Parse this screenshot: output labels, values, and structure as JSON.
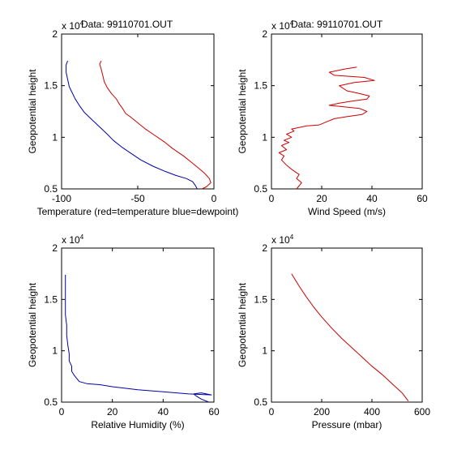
{
  "window": {
    "background": "#ffffff"
  },
  "chart_data": [
    {
      "type": "line",
      "title": "Data: 99110701.OUT",
      "xlabel": "Temperature (red=temperature blue=dewpoint)",
      "ylabel": "Geopotential height",
      "xlim": [
        -100,
        0
      ],
      "ylim": [
        5000,
        20000
      ],
      "xticks": [
        -100,
        -50,
        0
      ],
      "xtick_labels": [
        "-100",
        "-50",
        "0"
      ],
      "yticks": [
        5000,
        10000,
        15000,
        20000
      ],
      "ytick_labels": [
        "0.5",
        "1",
        "1.5",
        "2"
      ],
      "y_exponent": {
        "base": "x 10",
        "power": "4"
      },
      "grid": false,
      "series": [
        {
          "name": "temperature",
          "color": "#cc0000",
          "x": [
            -8,
            -5,
            -2,
            -3,
            -6,
            -10,
            -15,
            -20,
            -27,
            -33,
            -40,
            -45,
            -50,
            -55,
            -58,
            -60,
            -62,
            -64,
            -67,
            -70,
            -72,
            -73,
            -74,
            -75,
            -74
          ],
          "y": [
            5000,
            5200,
            5600,
            6000,
            6500,
            7000,
            7600,
            8200,
            8900,
            9600,
            10300,
            10800,
            11400,
            12000,
            12300,
            12800,
            13200,
            13700,
            14200,
            14800,
            15400,
            16000,
            16600,
            17100,
            17400
          ]
        },
        {
          "name": "dewpoint",
          "color": "#0000aa",
          "x": [
            -11,
            -12,
            -14,
            -18,
            -25,
            -32,
            -40,
            -48,
            -55,
            -60,
            -66,
            -70,
            -75,
            -80,
            -85,
            -88,
            -91,
            -93,
            -95,
            -96,
            -97,
            -97,
            -96
          ],
          "y": [
            5000,
            5300,
            5700,
            6000,
            6300,
            6700,
            7200,
            7800,
            8500,
            9000,
            9700,
            10300,
            11000,
            11700,
            12400,
            13000,
            13700,
            14300,
            14900,
            15600,
            16300,
            17000,
            17400
          ]
        }
      ]
    },
    {
      "type": "line",
      "title": "Data: 99110701.OUT",
      "xlabel": "Wind Speed (m/s)",
      "ylabel": "Geopotential height",
      "xlim": [
        0,
        60
      ],
      "ylim": [
        5000,
        20000
      ],
      "xticks": [
        0,
        20,
        40,
        60
      ],
      "xtick_labels": [
        "0",
        "20",
        "40",
        "60"
      ],
      "yticks": [
        5000,
        10000,
        15000,
        20000
      ],
      "ytick_labels": [
        "0.5",
        "1",
        "1.5",
        "2"
      ],
      "y_exponent": {
        "base": "x 10",
        "power": "4"
      },
      "grid": false,
      "series": [
        {
          "name": "wind speed",
          "color": "#cc0000",
          "x": [
            10,
            12,
            10,
            11,
            8,
            6,
            4,
            5,
            3,
            6,
            4,
            7,
            5,
            8,
            6,
            9,
            8,
            12,
            14,
            19,
            22,
            25,
            30,
            36,
            38,
            35,
            23,
            27,
            32,
            38,
            39,
            34,
            30,
            27,
            33,
            41,
            37,
            25,
            23,
            29,
            34
          ],
          "y": [
            5000,
            5600,
            6000,
            6400,
            6900,
            7300,
            7800,
            8200,
            8500,
            8800,
            9200,
            9500,
            9700,
            10000,
            10300,
            10600,
            10800,
            11000,
            11100,
            11200,
            11500,
            11800,
            12000,
            12200,
            12500,
            12800,
            13100,
            13300,
            13500,
            13700,
            14000,
            14300,
            14500,
            15000,
            15300,
            15500,
            15800,
            16000,
            16300,
            16600,
            16800
          ]
        }
      ]
    },
    {
      "type": "line",
      "title": "",
      "xlabel": "Relative Humidity (%)",
      "ylabel": "Geopotential height",
      "xlim": [
        0,
        60
      ],
      "ylim": [
        5000,
        20000
      ],
      "xticks": [
        0,
        20,
        40,
        60
      ],
      "xtick_labels": [
        "0",
        "20",
        "40",
        "60"
      ],
      "yticks": [
        5000,
        10000,
        15000,
        20000
      ],
      "ytick_labels": [
        "0.5",
        "1",
        "1.5",
        "2"
      ],
      "y_exponent": {
        "base": "x 10",
        "power": "4"
      },
      "grid": false,
      "series": [
        {
          "name": "relative humidity",
          "color": "#0000aa",
          "x": [
            58,
            55,
            53,
            52,
            55,
            59,
            50,
            40,
            30,
            20,
            15,
            10,
            7,
            6,
            5,
            4,
            4,
            3,
            3,
            2.5,
            2,
            2,
            1.5,
            1.5,
            1.5,
            1.5
          ],
          "y": [
            5000,
            5300,
            5600,
            5800,
            5900,
            5700,
            5800,
            6000,
            6200,
            6500,
            6700,
            6800,
            7000,
            7300,
            7600,
            8000,
            8500,
            9000,
            9700,
            10500,
            11500,
            12500,
            13500,
            14500,
            15500,
            17400
          ]
        }
      ]
    },
    {
      "type": "line",
      "title": "",
      "xlabel": "Pressure (mbar)",
      "ylabel": "Geopotential height",
      "xlim": [
        0,
        600
      ],
      "ylim": [
        5000,
        20000
      ],
      "xticks": [
        0,
        200,
        400,
        600
      ],
      "xtick_labels": [
        "0",
        "200",
        "400",
        "600"
      ],
      "yticks": [
        5000,
        10000,
        15000,
        20000
      ],
      "ytick_labels": [
        "0.5",
        "1",
        "1.5",
        "2"
      ],
      "y_exponent": {
        "base": "x 10",
        "power": "4"
      },
      "grid": false,
      "series": [
        {
          "name": "pressure",
          "color": "#cc0000",
          "x": [
            80,
            110,
            140,
            170,
            200,
            240,
            280,
            320,
            360,
            400,
            440,
            480,
            520,
            545
          ],
          "y": [
            17500,
            16300,
            15200,
            14200,
            13300,
            12200,
            11200,
            10300,
            9400,
            8500,
            7700,
            6800,
            5900,
            5100
          ]
        }
      ]
    }
  ]
}
